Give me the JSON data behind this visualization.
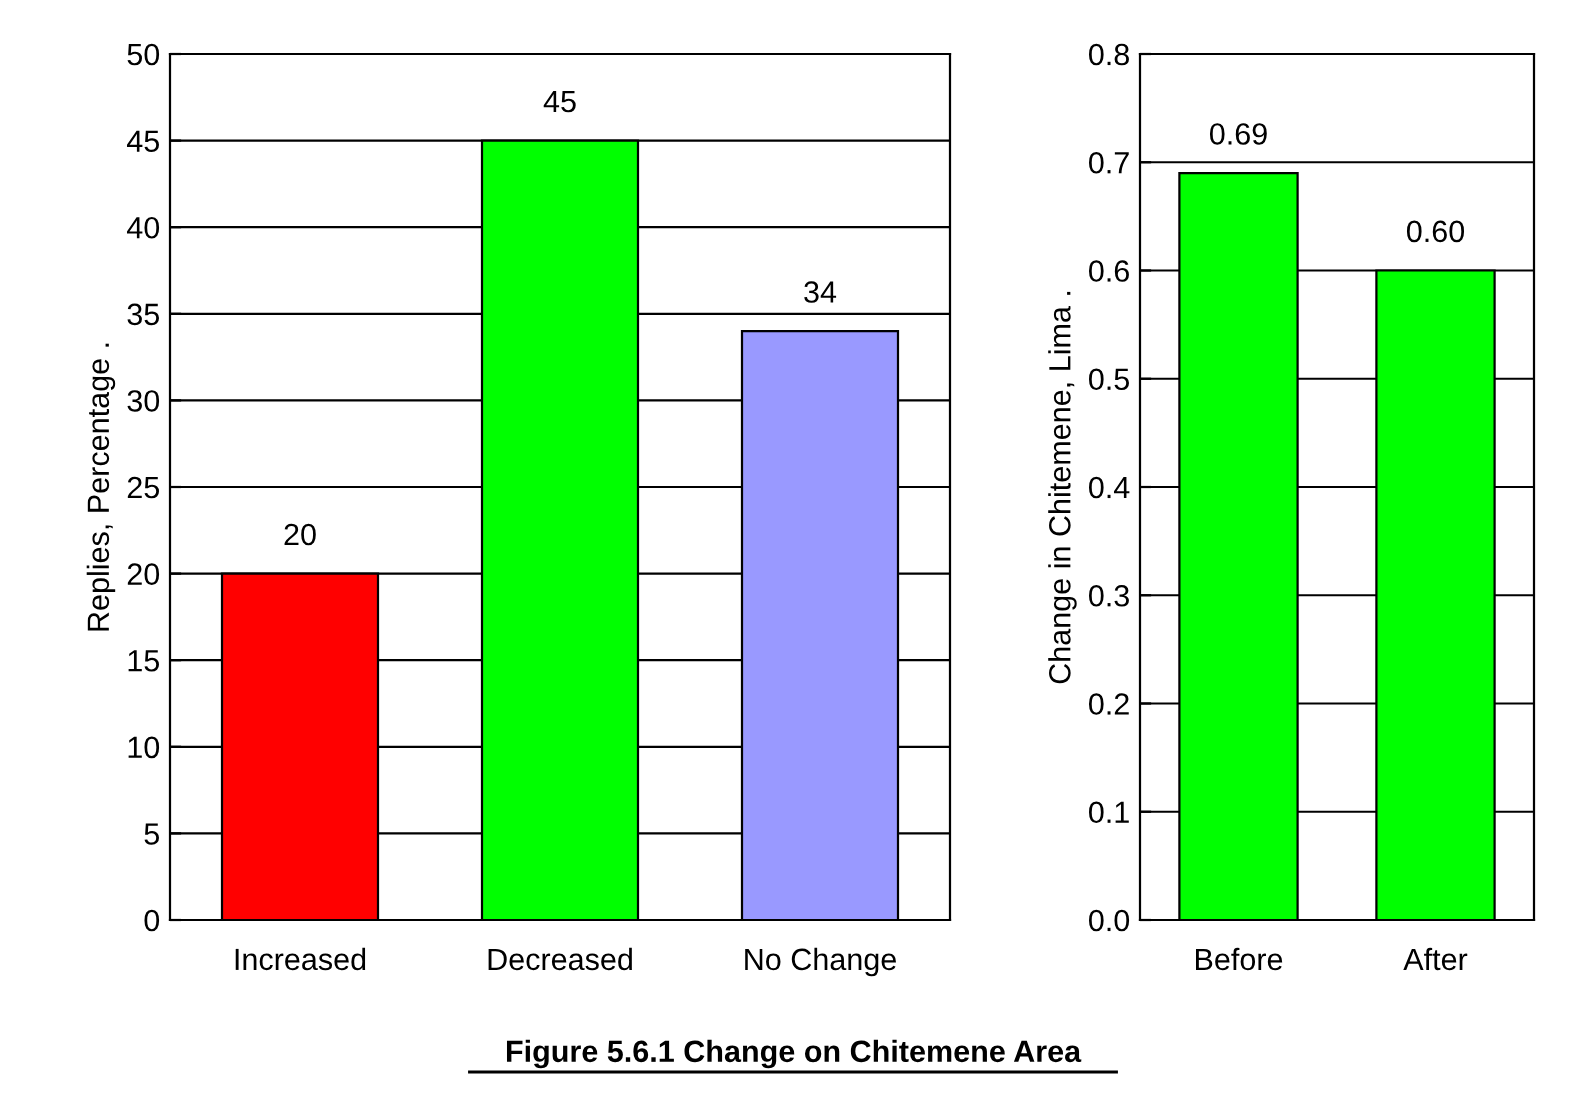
{
  "chart_data": [
    {
      "type": "bar",
      "ylabel": "Replies, Percentage .",
      "categories": [
        "Increased",
        "Decreased",
        "No Change"
      ],
      "values": [
        20,
        45,
        34
      ],
      "colors": [
        "#ff0000",
        "#00ff00",
        "#9999ff"
      ],
      "ylim": [
        0,
        50
      ],
      "yticks": [
        0,
        5,
        10,
        15,
        20,
        25,
        30,
        35,
        40,
        45,
        50
      ],
      "grid": "y",
      "data_labels": true,
      "annotations": [
        "Figure 5.6.1 Change on Chitemene Area"
      ]
    },
    {
      "type": "bar",
      "ylabel": "Change in Chitemene, Lima .",
      "categories": [
        "Before",
        "After"
      ],
      "values": [
        0.69,
        0.6
      ],
      "value_labels": [
        "0.69",
        "0.60"
      ],
      "colors": [
        "#00ff00",
        "#00ff00"
      ],
      "ylim": [
        0,
        0.8
      ],
      "yticks": [
        {
          "value": 0,
          "label": "0.0"
        },
        {
          "value": 0.1,
          "label": "0.1"
        },
        {
          "value": 0.2,
          "label": "0.2"
        },
        {
          "value": 0.3,
          "label": "0.3"
        },
        {
          "value": 0.4,
          "label": "0.4"
        },
        {
          "value": 0.5,
          "label": "0.5"
        },
        {
          "value": 0.6,
          "label": "0.6"
        },
        {
          "value": 0.7,
          "label": "0.7"
        },
        {
          "value": 0.8,
          "label": "0.8"
        }
      ],
      "grid": "y"
    }
  ]
}
